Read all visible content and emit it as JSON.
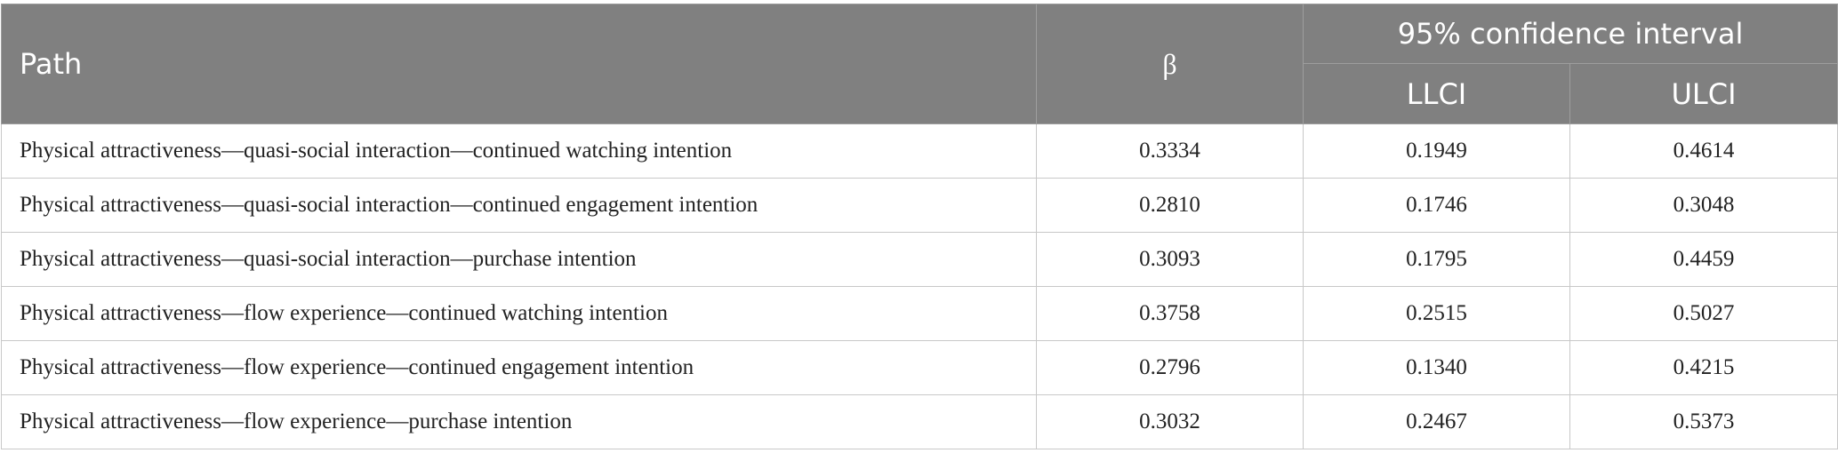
{
  "table": {
    "header": {
      "path": "Path",
      "beta": "β",
      "ci": "95% confidence interval",
      "llci": "LLCI",
      "ulci": "ULCI"
    },
    "rows": [
      [
        "Physical attractiveness—quasi-social interaction—continued watching intention",
        "0.3334",
        "0.1949",
        "0.4614"
      ],
      [
        "Physical attractiveness—quasi-social interaction—continued engagement intention",
        "0.2810",
        "0.1746",
        "0.3048"
      ],
      [
        "Physical attractiveness—quasi-social interaction—purchase intention",
        "0.3093",
        "0.1795",
        "0.4459"
      ],
      [
        "Physical attractiveness—flow experience—continued watching intention",
        "0.3758",
        "0.2515",
        "0.5027"
      ],
      [
        "Physical attractiveness—flow experience—continued engagement intention",
        "0.2796",
        "0.1340",
        "0.4215"
      ],
      [
        "Physical attractiveness—flow experience—purchase intention",
        "0.3032",
        "0.2467",
        "0.5373"
      ]
    ]
  }
}
